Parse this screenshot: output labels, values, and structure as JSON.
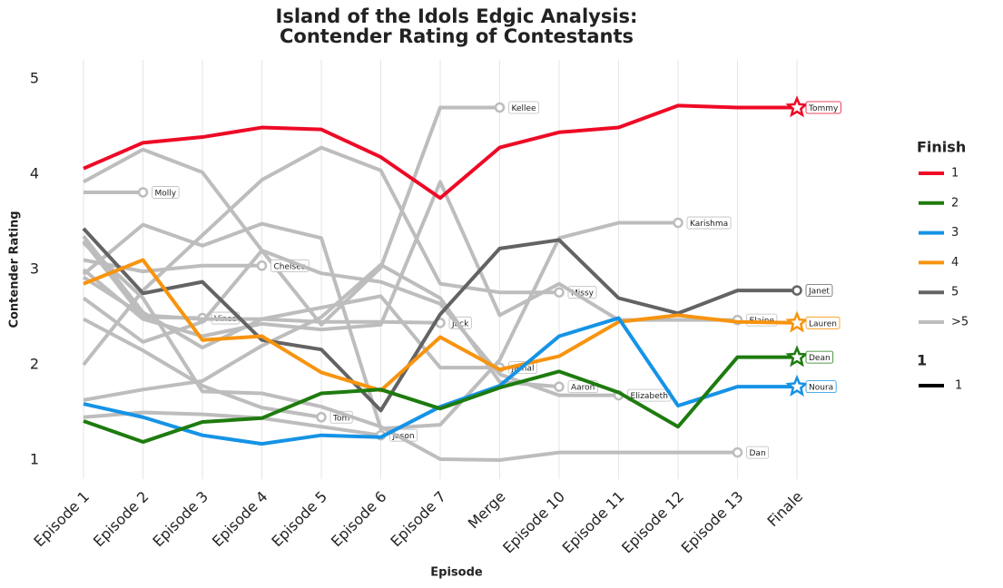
{
  "chart_data": {
    "type": "line",
    "title": "Island of the Idols Edgic Analysis:",
    "subtitle": "Contender Rating of Contestants",
    "x_label": "Episode",
    "y_label": "Contender Rating",
    "categories": [
      "Episode 1",
      "Episode 2",
      "Episode 3",
      "Episode 4",
      "Episode 5",
      "Episode 6",
      "Episode 7",
      "Merge",
      "Episode 10",
      "Episode 11",
      "Episode 12",
      "Episode 13",
      "Finale"
    ],
    "ylim": [
      0.8,
      5.2
    ],
    "yticks": [
      1,
      2,
      3,
      4,
      5
    ],
    "grid": true,
    "series": [
      {
        "name": "Kellee",
        "color": "#bdbdbd",
        "marker": "circle",
        "values": [
          3.92,
          4.26,
          4.02,
          3.2,
          2.42,
          3.02,
          4.7,
          4.7,
          null,
          null,
          null,
          null,
          null
        ]
      },
      {
        "name": "Molly",
        "color": "#bdbdbd",
        "marker": "circle",
        "values": [
          3.81,
          3.81,
          null,
          null,
          null,
          null,
          null,
          null,
          null,
          null,
          null,
          null,
          null
        ]
      },
      {
        "name": "Vince",
        "color": "#bdbdbd",
        "marker": "circle",
        "values": [
          3.3,
          2.5,
          2.49,
          null,
          null,
          null,
          null,
          null,
          null,
          null,
          null,
          null,
          null
        ]
      },
      {
        "name": "Chelsea",
        "color": "#bdbdbd",
        "marker": "circle",
        "values": [
          3.1,
          2.98,
          3.04,
          3.04,
          null,
          null,
          null,
          null,
          null,
          null,
          null,
          null,
          null
        ]
      },
      {
        "name": "Tom",
        "color": "#bdbdbd",
        "marker": "circle",
        "values": [
          2.48,
          2.15,
          1.78,
          1.55,
          1.45,
          null,
          null,
          null,
          null,
          null,
          null,
          null,
          null
        ]
      },
      {
        "name": "Jason",
        "color": "#bdbdbd",
        "marker": "circle",
        "values": [
          1.45,
          1.5,
          1.48,
          1.44,
          1.35,
          1.26,
          null,
          null,
          null,
          null,
          null,
          null,
          null
        ]
      },
      {
        "name": "Jack",
        "color": "#bdbdbd",
        "marker": "circle",
        "values": [
          3.35,
          2.55,
          2.18,
          2.48,
          2.45,
          2.45,
          2.44,
          null,
          null,
          null,
          null,
          null,
          null
        ]
      },
      {
        "name": "Jamal",
        "color": "#bdbdbd",
        "marker": "circle",
        "values": [
          2.92,
          2.52,
          2.48,
          2.48,
          2.6,
          2.72,
          1.97,
          1.97,
          null,
          null,
          null,
          null,
          null
        ]
      },
      {
        "name": "Missy",
        "color": "#bdbdbd",
        "marker": "circle",
        "values": [
          2.0,
          2.78,
          3.36,
          3.94,
          4.28,
          4.04,
          2.85,
          2.76,
          2.76,
          null,
          null,
          null,
          null
        ]
      },
      {
        "name": "Aaron",
        "color": "#bdbdbd",
        "marker": "circle",
        "values": [
          1.63,
          1.74,
          1.83,
          2.2,
          2.5,
          3.05,
          2.7,
          1.82,
          1.77,
          null,
          null,
          null,
          null
        ]
      },
      {
        "name": "Elizabeth",
        "color": "#bdbdbd",
        "marker": "circle",
        "values": [
          2.7,
          2.24,
          2.45,
          3.2,
          2.96,
          2.87,
          2.64,
          1.9,
          1.68,
          1.68,
          null,
          null,
          null
        ]
      },
      {
        "name": "Karishma",
        "color": "#bdbdbd",
        "marker": "circle",
        "values": [
          2.95,
          3.47,
          3.25,
          3.48,
          3.33,
          1.33,
          1.37,
          2.05,
          3.33,
          3.49,
          3.49,
          null,
          null
        ]
      },
      {
        "name": "Elaine",
        "color": "#bdbdbd",
        "marker": "circle",
        "values": [
          3.0,
          2.48,
          2.3,
          2.43,
          2.37,
          2.42,
          3.92,
          2.52,
          2.85,
          2.47,
          2.47,
          2.47,
          null
        ]
      },
      {
        "name": "Dan",
        "color": "#bdbdbd",
        "marker": "circle",
        "values": [
          3.28,
          2.7,
          1.72,
          1.7,
          1.56,
          1.35,
          1.01,
          1.0,
          1.08,
          1.08,
          1.08,
          1.08,
          null
        ]
      },
      {
        "name": "Janet",
        "color": "#636363",
        "marker": "circle",
        "values": [
          3.43,
          2.75,
          2.87,
          2.26,
          2.16,
          1.52,
          2.53,
          3.22,
          3.31,
          2.7,
          2.54,
          2.78,
          2.78
        ]
      },
      {
        "name": "Lauren",
        "color": "#f7940f",
        "marker": "star",
        "values": [
          2.85,
          3.1,
          2.26,
          2.3,
          1.92,
          1.73,
          2.29,
          1.95,
          2.09,
          2.45,
          2.52,
          2.45,
          2.44
        ]
      },
      {
        "name": "Noura",
        "color": "#1593e6",
        "marker": "star",
        "values": [
          1.59,
          1.45,
          1.26,
          1.17,
          1.26,
          1.24,
          1.56,
          1.78,
          2.3,
          2.49,
          1.57,
          1.77,
          1.77
        ]
      },
      {
        "name": "Dean",
        "color": "#1e7b0e",
        "marker": "star",
        "values": [
          1.41,
          1.19,
          1.4,
          1.44,
          1.7,
          1.74,
          1.54,
          1.76,
          1.93,
          1.71,
          1.35,
          2.08,
          2.08
        ]
      },
      {
        "name": "Tommy",
        "color": "#ee0a26",
        "marker": "star",
        "values": [
          4.06,
          4.33,
          4.39,
          4.49,
          4.47,
          4.18,
          3.75,
          4.28,
          4.44,
          4.49,
          4.72,
          4.7,
          4.7
        ]
      }
    ],
    "legend": {
      "title": "Finish",
      "entries": [
        {
          "label": "1",
          "color": "#ee0a26"
        },
        {
          "label": "2",
          "color": "#1e7b0e"
        },
        {
          "label": "3",
          "color": "#1593e6"
        },
        {
          "label": "4",
          "color": "#f7940f"
        },
        {
          "label": "5",
          "color": "#636363"
        },
        {
          "label": ">5",
          "color": "#bdbdbd"
        }
      ]
    },
    "size_legend": {
      "title": "1",
      "entries": [
        {
          "label": "1",
          "color": "#000000"
        }
      ]
    }
  }
}
